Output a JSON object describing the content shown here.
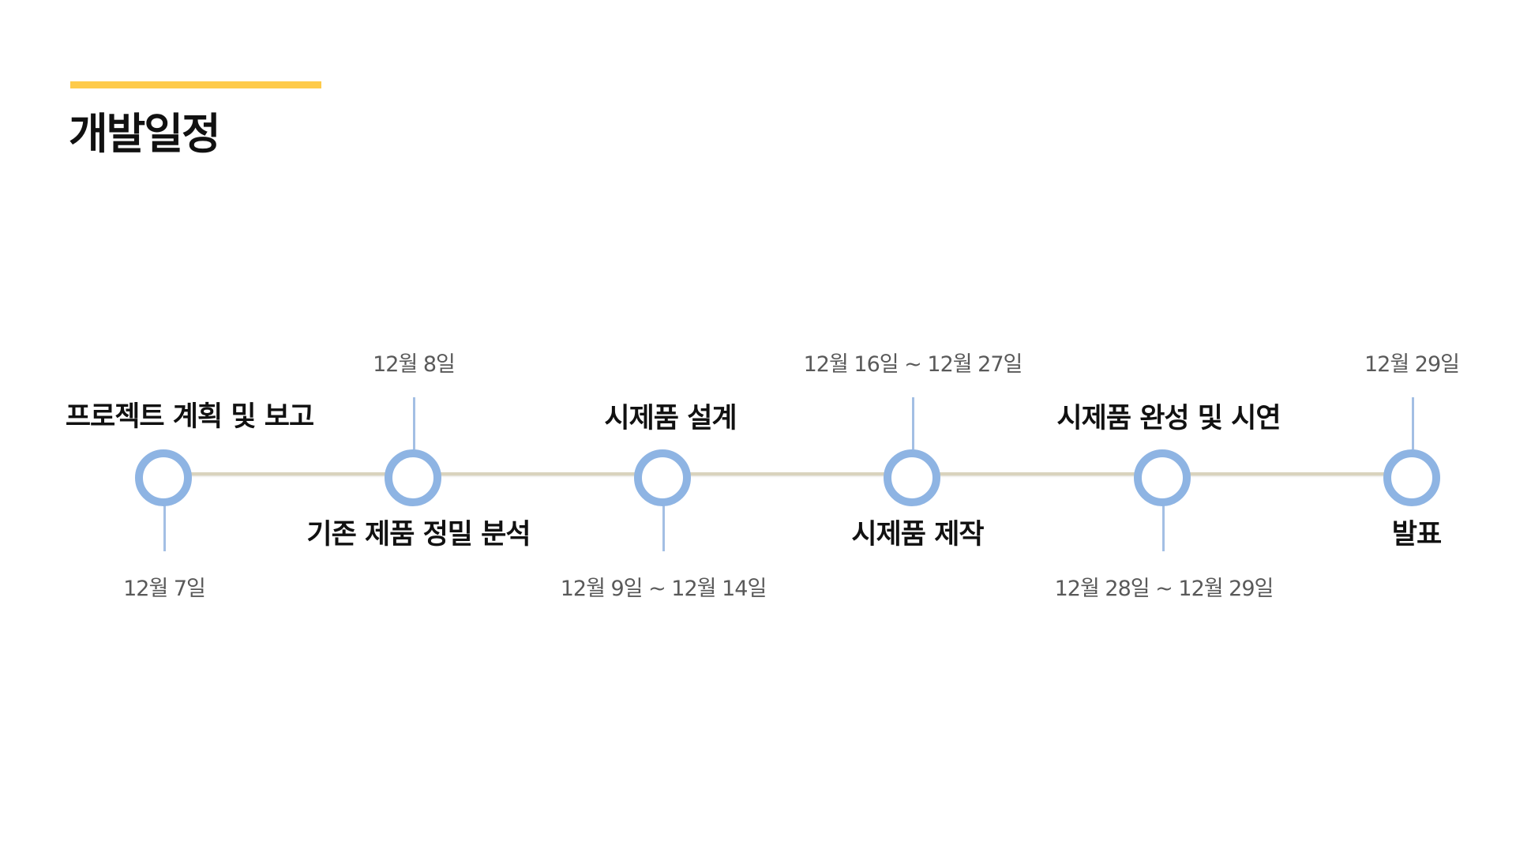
{
  "header": {
    "title": "개발일정",
    "accent_color": "#fecb4b"
  },
  "timeline": {
    "node_color": "#8eb4e3",
    "line_color": "#d9d3bd",
    "milestones": [
      {
        "label": "프로젝트 계획 및 보고",
        "date": "12월 7일"
      },
      {
        "label": "기존 제품 정밀 분석",
        "date": "12월 8일"
      },
      {
        "label": "시제품 설계",
        "date": "12월 9일 ~ 12월 14일"
      },
      {
        "label": "시제품 제작",
        "date": "12월 16일 ~ 12월 27일"
      },
      {
        "label": "시제품 완성 및 시연",
        "date": "12월 28일 ~ 12월 29일"
      },
      {
        "label": "발표",
        "date": "12월 29일"
      }
    ]
  }
}
